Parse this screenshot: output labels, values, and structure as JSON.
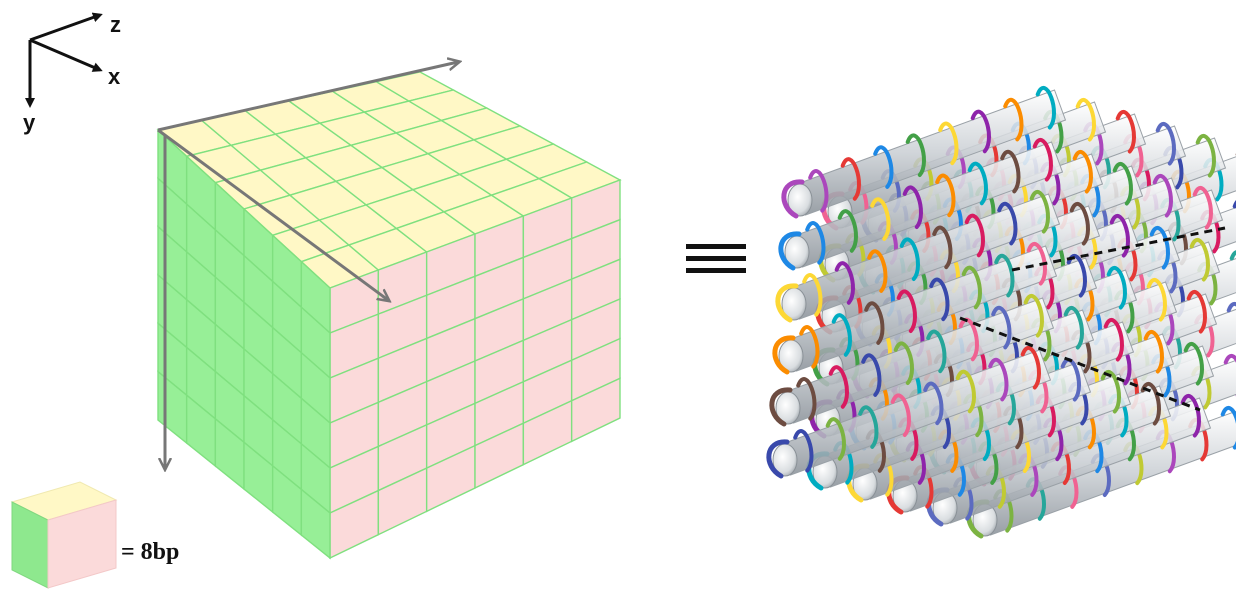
{
  "axes": {
    "z_label": "z",
    "x_label": "x",
    "y_label": "y"
  },
  "cube": {
    "divisions": 6,
    "colors": {
      "top": "#fff8c6",
      "front": "#fbdada",
      "side": "#97ef97",
      "grid_line": "#7fe07f"
    }
  },
  "equivalence_symbol": "≡",
  "legend": {
    "text": "= 8bp"
  },
  "helix_bundle": {
    "rows": 6,
    "columns": 6,
    "strand_colors": [
      "#e53935",
      "#1e88e5",
      "#43a047",
      "#fdd835",
      "#8e24aa",
      "#fb8c00",
      "#00acc1",
      "#6d4c41",
      "#d81b60",
      "#3949ab",
      "#7cb342",
      "#26a69a",
      "#f06292",
      "#5c6bc0",
      "#c0ca33",
      "#ab47bc"
    ]
  }
}
